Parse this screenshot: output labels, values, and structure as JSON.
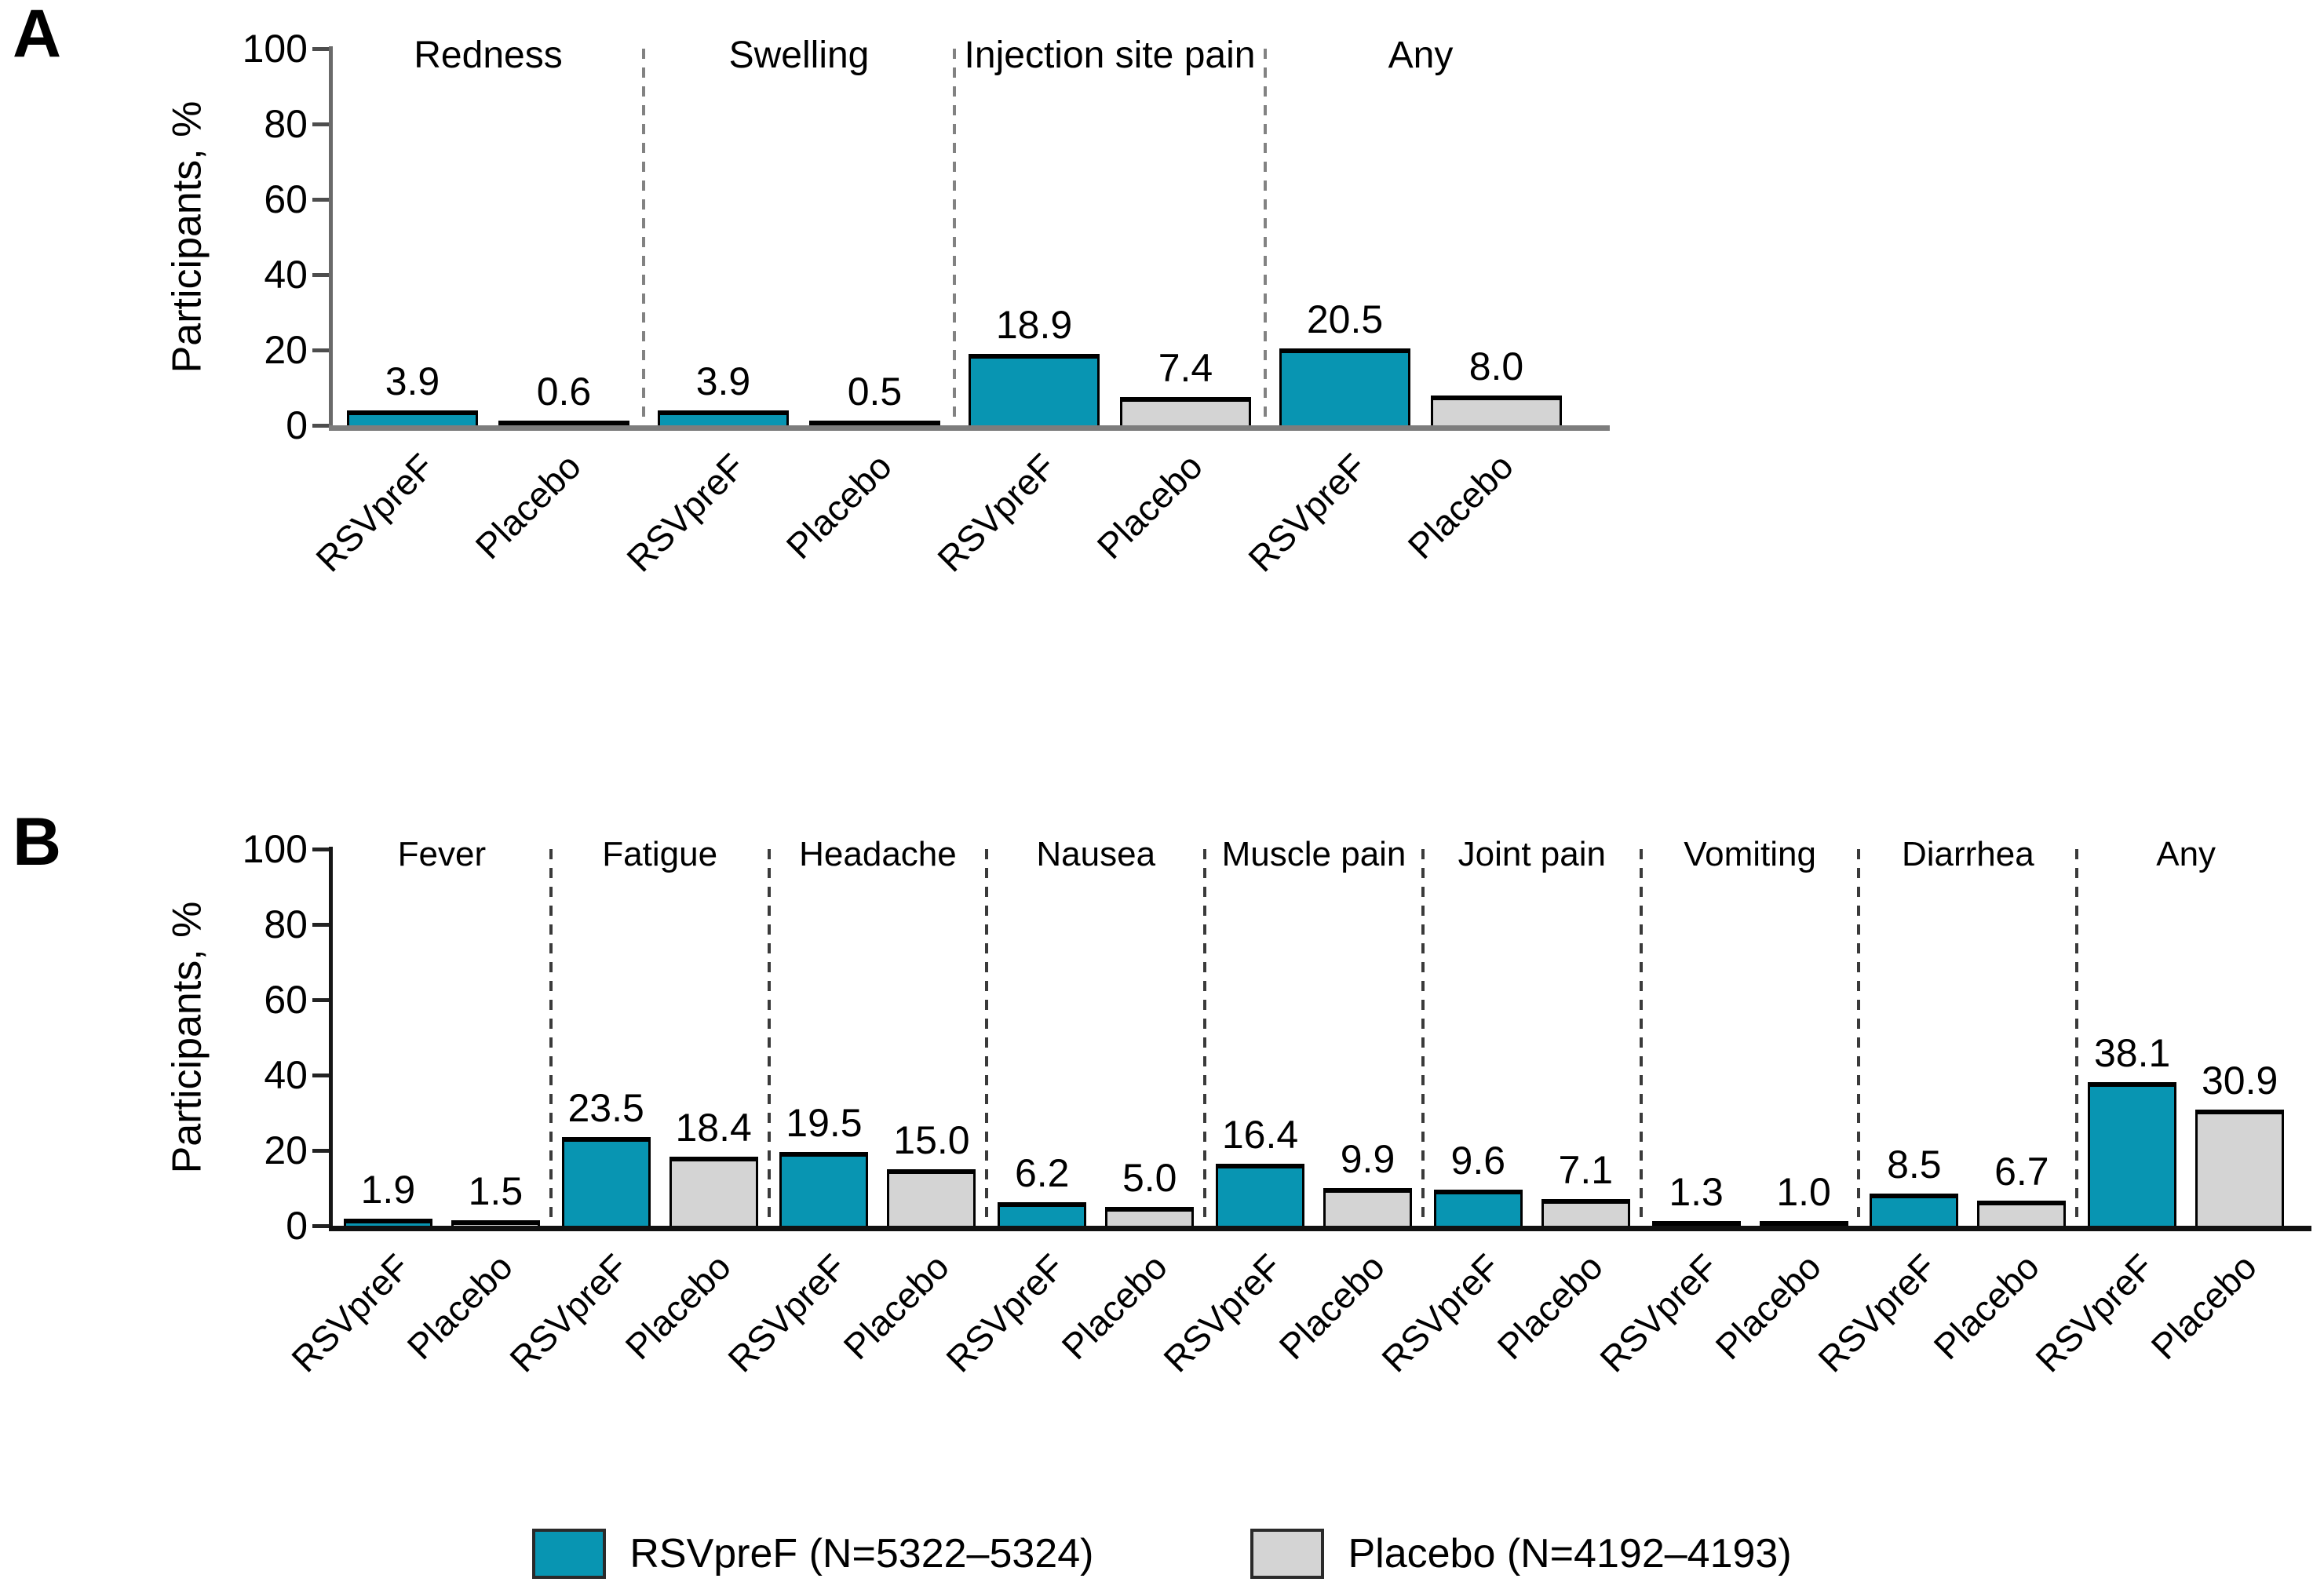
{
  "legend": {
    "items": [
      {
        "label": "RSVpreF (N=5322–5324)",
        "color": "#0895b2"
      },
      {
        "label": "Placebo (N=4192–4193)",
        "color": "#d4d4d4"
      }
    ]
  },
  "chart_data": [
    {
      "type": "bar",
      "panel_label": "A",
      "title": "",
      "xlabel": "",
      "ylabel": "Participants, %",
      "ylim": [
        0,
        100
      ],
      "yticks": [
        0,
        20,
        40,
        60,
        80,
        100
      ],
      "grid": false,
      "legend_position": "bottom",
      "group_separators": "dashed",
      "categories": [
        "Redness",
        "Swelling",
        "Injection site pain",
        "Any"
      ],
      "bar_tick_labels": [
        "RSVpreF",
        "Placebo"
      ],
      "series": [
        {
          "name": "RSVpreF",
          "color": "#0895b2",
          "values": [
            3.9,
            3.9,
            18.9,
            20.5
          ]
        },
        {
          "name": "Placebo",
          "color": "#d4d4d4",
          "values": [
            0.6,
            0.5,
            7.4,
            8.0
          ]
        }
      ]
    },
    {
      "type": "bar",
      "panel_label": "B",
      "title": "",
      "xlabel": "",
      "ylabel": "Participants, %",
      "ylim": [
        0,
        100
      ],
      "yticks": [
        0,
        20,
        40,
        60,
        80,
        100
      ],
      "grid": false,
      "legend_position": "bottom",
      "group_separators": "dashed",
      "categories": [
        "Fever",
        "Fatigue",
        "Headache",
        "Nausea",
        "Muscle pain",
        "Joint pain",
        "Vomiting",
        "Diarrhea",
        "Any"
      ],
      "bar_tick_labels": [
        "RSVpreF",
        "Placebo"
      ],
      "series": [
        {
          "name": "RSVpreF",
          "color": "#0895b2",
          "values": [
            1.9,
            23.5,
            19.5,
            6.2,
            16.4,
            9.6,
            1.3,
            8.5,
            38.1
          ]
        },
        {
          "name": "Placebo",
          "color": "#d4d4d4",
          "values": [
            1.5,
            18.4,
            15.0,
            5.0,
            9.9,
            7.1,
            1.0,
            6.7,
            30.9
          ]
        }
      ]
    }
  ]
}
